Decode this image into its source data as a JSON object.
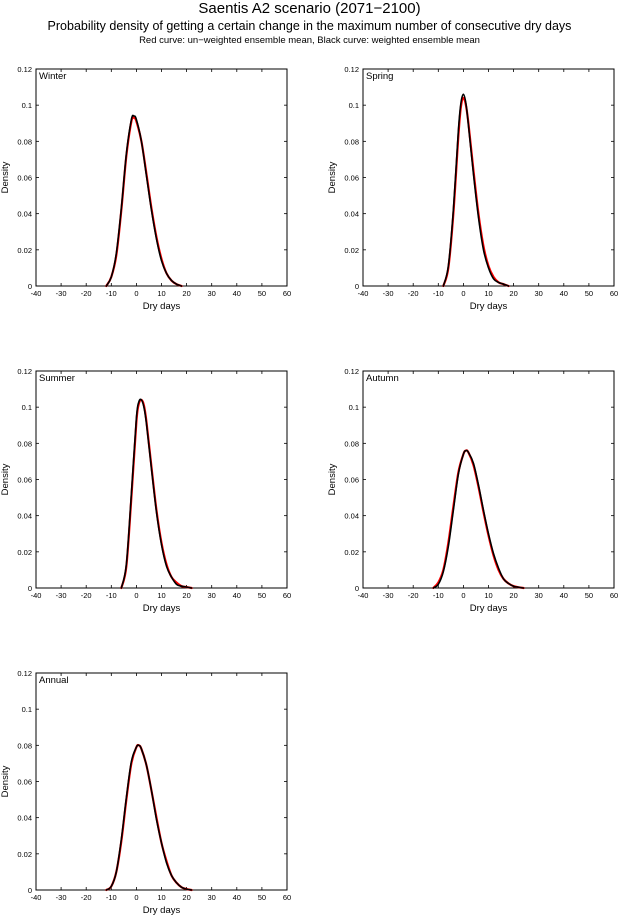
{
  "header": {
    "title": "Saentis A2 scenario (2071−2100)",
    "subtitle": "Probability density of getting a certain change in the maximum number of consecutive dry days",
    "caption": "Red curve: un−weighted ensemble mean, Black curve: weighted ensemble mean"
  },
  "colors": {
    "unweighted": "#ff0000",
    "weighted": "#000000"
  },
  "chart_data": [
    {
      "type": "line",
      "panel_label": "Winter",
      "xlabel": "Dry days",
      "ylabel": "Density",
      "xlim": [
        -40,
        60
      ],
      "ylim": [
        0,
        0.12
      ],
      "xticks": [
        -40,
        -30,
        -20,
        -10,
        0,
        10,
        20,
        30,
        40,
        50,
        60
      ],
      "yticks": [
        0,
        0.02,
        0.04,
        0.06,
        0.08,
        0.1,
        0.12
      ],
      "series": [
        {
          "name": "un−weighted ensemble mean",
          "color": "#ff0000",
          "x": [
            -12,
            -10,
            -8,
            -6,
            -4,
            -2,
            -1,
            0,
            2,
            4,
            6,
            8,
            10,
            12,
            14,
            16,
            18
          ],
          "y": [
            0,
            0.005,
            0.017,
            0.042,
            0.072,
            0.091,
            0.093,
            0.091,
            0.08,
            0.062,
            0.043,
            0.027,
            0.015,
            0.007,
            0.003,
            0.001,
            0
          ]
        },
        {
          "name": "weighted ensemble mean",
          "color": "#000000",
          "x": [
            -12,
            -10,
            -8,
            -6,
            -4,
            -2,
            -1,
            0,
            2,
            4,
            6,
            8,
            10,
            12,
            14,
            16,
            18
          ],
          "y": [
            0,
            0.005,
            0.018,
            0.043,
            0.073,
            0.092,
            0.094,
            0.092,
            0.08,
            0.061,
            0.042,
            0.026,
            0.014,
            0.007,
            0.003,
            0.001,
            0
          ]
        }
      ]
    },
    {
      "type": "line",
      "panel_label": "Spring",
      "xlabel": "Dry days",
      "ylabel": "Density",
      "xlim": [
        -40,
        60
      ],
      "ylim": [
        0,
        0.12
      ],
      "xticks": [
        -40,
        -30,
        -20,
        -10,
        0,
        10,
        20,
        30,
        40,
        50,
        60
      ],
      "yticks": [
        0,
        0.02,
        0.04,
        0.06,
        0.08,
        0.1,
        0.12
      ],
      "series": [
        {
          "name": "un−weighted ensemble mean",
          "color": "#ff0000",
          "x": [
            -8,
            -6,
            -4,
            -2,
            -1,
            0,
            1,
            2,
            4,
            6,
            8,
            10,
            12,
            14,
            16,
            18
          ],
          "y": [
            0,
            0.01,
            0.04,
            0.083,
            0.099,
            0.104,
            0.1,
            0.09,
            0.064,
            0.04,
            0.022,
            0.011,
            0.005,
            0.002,
            0.001,
            0
          ]
        },
        {
          "name": "weighted ensemble mean",
          "color": "#000000",
          "x": [
            -8,
            -6,
            -4,
            -2,
            -1,
            0,
            1,
            2,
            4,
            6,
            8,
            10,
            12,
            14,
            16,
            18
          ],
          "y": [
            0,
            0.011,
            0.042,
            0.086,
            0.101,
            0.106,
            0.101,
            0.089,
            0.062,
            0.038,
            0.02,
            0.01,
            0.004,
            0.002,
            0.001,
            0
          ]
        }
      ]
    },
    {
      "type": "line",
      "panel_label": "Summer",
      "xlabel": "Dry days",
      "ylabel": "Density",
      "xlim": [
        -40,
        60
      ],
      "ylim": [
        0,
        0.12
      ],
      "xticks": [
        -40,
        -30,
        -20,
        -10,
        0,
        10,
        20,
        30,
        40,
        50,
        60
      ],
      "yticks": [
        0,
        0.02,
        0.04,
        0.06,
        0.08,
        0.1,
        0.12
      ],
      "series": [
        {
          "name": "un−weighted ensemble mean",
          "color": "#ff0000",
          "x": [
            -6,
            -4,
            -2,
            0,
            1,
            2,
            3,
            4,
            6,
            8,
            10,
            12,
            14,
            16,
            18,
            20,
            22
          ],
          "y": [
            0,
            0.012,
            0.05,
            0.092,
            0.102,
            0.104,
            0.101,
            0.092,
            0.067,
            0.043,
            0.025,
            0.013,
            0.006,
            0.003,
            0.001,
            0.0005,
            0
          ]
        },
        {
          "name": "weighted ensemble mean",
          "color": "#000000",
          "x": [
            -6,
            -4,
            -2,
            0,
            1,
            2,
            3,
            4,
            6,
            8,
            10,
            12,
            14,
            16,
            18,
            20,
            22
          ],
          "y": [
            0,
            0.013,
            0.052,
            0.094,
            0.103,
            0.104,
            0.1,
            0.091,
            0.066,
            0.042,
            0.024,
            0.012,
            0.006,
            0.002,
            0.001,
            0.0005,
            0
          ]
        }
      ]
    },
    {
      "type": "line",
      "panel_label": "Autumn",
      "xlabel": "Dry days",
      "ylabel": "Density",
      "xlim": [
        -40,
        60
      ],
      "ylim": [
        0,
        0.12
      ],
      "xticks": [
        -40,
        -30,
        -20,
        -10,
        0,
        10,
        20,
        30,
        40,
        50,
        60
      ],
      "yticks": [
        0,
        0.02,
        0.04,
        0.06,
        0.08,
        0.1,
        0.12
      ],
      "series": [
        {
          "name": "un−weighted ensemble mean",
          "color": "#ff0000",
          "x": [
            -12,
            -10,
            -8,
            -6,
            -4,
            -2,
            0,
            1,
            2,
            4,
            6,
            8,
            10,
            12,
            14,
            16,
            18,
            20,
            22,
            24
          ],
          "y": [
            0,
            0.003,
            0.01,
            0.025,
            0.045,
            0.064,
            0.074,
            0.076,
            0.075,
            0.068,
            0.056,
            0.042,
            0.029,
            0.018,
            0.01,
            0.005,
            0.0025,
            0.001,
            0.0004,
            0
          ]
        },
        {
          "name": "weighted ensemble mean",
          "color": "#000000",
          "x": [
            -12,
            -10,
            -8,
            -6,
            -4,
            -2,
            0,
            1,
            2,
            4,
            6,
            8,
            10,
            12,
            14,
            16,
            18,
            20,
            22,
            24
          ],
          "y": [
            0,
            0.002,
            0.009,
            0.023,
            0.043,
            0.063,
            0.074,
            0.076,
            0.075,
            0.069,
            0.057,
            0.043,
            0.03,
            0.019,
            0.011,
            0.005,
            0.0025,
            0.001,
            0.0004,
            0
          ]
        }
      ]
    },
    {
      "type": "line",
      "panel_label": "Annual",
      "xlabel": "Dry days",
      "ylabel": "Density",
      "xlim": [
        -40,
        60
      ],
      "ylim": [
        0,
        0.12
      ],
      "xticks": [
        -40,
        -30,
        -20,
        -10,
        0,
        10,
        20,
        30,
        40,
        50,
        60
      ],
      "yticks": [
        0,
        0.02,
        0.04,
        0.06,
        0.08,
        0.1,
        0.12
      ],
      "series": [
        {
          "name": "un−weighted ensemble mean",
          "color": "#ff0000",
          "x": [
            -12,
            -10,
            -8,
            -6,
            -4,
            -2,
            0,
            1,
            2,
            4,
            6,
            8,
            10,
            12,
            14,
            16,
            18,
            20,
            22
          ],
          "y": [
            0,
            0.002,
            0.01,
            0.027,
            0.05,
            0.07,
            0.079,
            0.08,
            0.078,
            0.069,
            0.055,
            0.04,
            0.026,
            0.016,
            0.008,
            0.004,
            0.0015,
            0.0005,
            0
          ]
        },
        {
          "name": "weighted ensemble mean",
          "color": "#000000",
          "x": [
            -12,
            -10,
            -8,
            -6,
            -4,
            -2,
            0,
            1,
            2,
            4,
            6,
            8,
            10,
            12,
            14,
            16,
            18,
            20,
            22
          ],
          "y": [
            0,
            0.002,
            0.01,
            0.028,
            0.051,
            0.071,
            0.079,
            0.08,
            0.078,
            0.069,
            0.055,
            0.039,
            0.026,
            0.015,
            0.008,
            0.004,
            0.0015,
            0.0005,
            0
          ]
        }
      ]
    }
  ]
}
